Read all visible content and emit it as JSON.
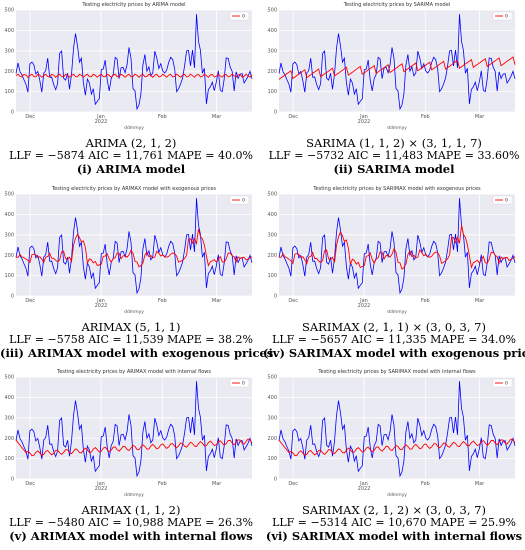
{
  "chart_data": [
    {
      "type": "line",
      "title": "Testing electricity prices by ARIMA model",
      "xlabel": "ddmmyy",
      "ylabel": "",
      "ylim": [
        0,
        500
      ],
      "yticks": [
        0,
        100,
        200,
        300,
        400,
        500
      ],
      "xticks": [
        "Dec",
        "Jan\n2022",
        "Feb",
        "Mar"
      ],
      "legend": {
        "position": "top-right",
        "entries": [
          "0"
        ]
      },
      "grid": true,
      "series": [
        {
          "name": "",
          "color": "#0000ff",
          "profile": "actual"
        },
        {
          "name": "0",
          "color": "#ff0000",
          "profile": "arima"
        }
      ],
      "caption": {
        "model": "ARIMA (2, 1, 2)",
        "stats": "LLF = −5874 AIC = 11,761 MAPE = 40.0%",
        "label": "(i) ARIMA model"
      }
    },
    {
      "type": "line",
      "title": "Testing electricity prices by SARIMA model",
      "xlabel": "ddmmyy",
      "ylabel": "",
      "ylim": [
        0,
        500
      ],
      "yticks": [
        0,
        100,
        200,
        300,
        400,
        500
      ],
      "xticks": [
        "Dec",
        "Jan\n2022",
        "Feb",
        "Mar"
      ],
      "legend": {
        "position": "top-right",
        "entries": [
          "0"
        ]
      },
      "grid": true,
      "series": [
        {
          "name": "",
          "color": "#0000ff",
          "profile": "actual"
        },
        {
          "name": "0",
          "color": "#ff0000",
          "profile": "sarima"
        }
      ],
      "caption": {
        "model": "SARIMA (1, 1, 2) × (3, 1, 1, 7)",
        "stats": "LLF = −5732 AIC = 11,483 MAPE = 33.60%",
        "label": "(ii) SARIMA model"
      }
    },
    {
      "type": "line",
      "title": "Testing electricity prices by ARIMAX model with exogenous prices",
      "xlabel": "ddmmyy",
      "ylabel": "",
      "ylim": [
        0,
        500
      ],
      "yticks": [
        0,
        100,
        200,
        300,
        400,
        500
      ],
      "xticks": [
        "Dec",
        "Jan\n2022",
        "Feb",
        "Mar"
      ],
      "legend": {
        "position": "top-right",
        "entries": [
          "0"
        ]
      },
      "grid": true,
      "series": [
        {
          "name": "",
          "color": "#0000ff",
          "profile": "actual"
        },
        {
          "name": "0",
          "color": "#ff0000",
          "profile": "exog"
        }
      ],
      "caption": {
        "model": "ARIMAX (5, 1, 1)",
        "stats": "LLF = −5758 AIC = 11,539 MAPE = 38.2%",
        "label": "(iii) ARIMAX model with exogenous prices"
      }
    },
    {
      "type": "line",
      "title": "Testing electricity prices by SARIMAX model with exogenous prices",
      "xlabel": "ddmmyy",
      "ylabel": "",
      "ylim": [
        0,
        500
      ],
      "yticks": [
        0,
        100,
        200,
        300,
        400,
        500
      ],
      "xticks": [
        "Dec",
        "Jan\n2022",
        "Feb",
        "Mar"
      ],
      "legend": {
        "position": "top-right",
        "entries": [
          "0"
        ]
      },
      "grid": true,
      "series": [
        {
          "name": "",
          "color": "#0000ff",
          "profile": "actual"
        },
        {
          "name": "0",
          "color": "#ff0000",
          "profile": "exog2"
        }
      ],
      "caption": {
        "model": "SARIMAX (2, 1, 1) × (3, 0, 3, 7)",
        "stats": "LLF = −5657 AIC = 11,335 MAPE = 34.0%",
        "label": "(iv) SARIMAX model with exogenous prices"
      }
    },
    {
      "type": "line",
      "title": "Testing electricity prices by ARIMAX model with internal flows",
      "xlabel": "ddmmyy",
      "ylabel": "",
      "ylim": [
        0,
        500
      ],
      "yticks": [
        0,
        100,
        200,
        300,
        400,
        500
      ],
      "xticks": [
        "Dec",
        "Jan\n2022",
        "Feb",
        "Mar"
      ],
      "legend": {
        "position": "top-right",
        "entries": [
          "0"
        ]
      },
      "grid": true,
      "series": [
        {
          "name": "",
          "color": "#0000ff",
          "profile": "actual"
        },
        {
          "name": "0",
          "color": "#ff0000",
          "profile": "flows"
        }
      ],
      "caption": {
        "model": "ARIMAX (1, 1, 2)",
        "stats": "LLF = −5480 AIC = 10,988 MAPE = 26.3%",
        "label": "(v) ARIMAX model with internal flows"
      }
    },
    {
      "type": "line",
      "title": "Testing electricity prices by SARIMAX model with internal flows",
      "xlabel": "ddmmyy",
      "ylabel": "",
      "ylim": [
        0,
        500
      ],
      "yticks": [
        0,
        100,
        200,
        300,
        400,
        500
      ],
      "xticks": [
        "Dec",
        "Jan\n2022",
        "Feb",
        "Mar"
      ],
      "legend": {
        "position": "top-right",
        "entries": [
          "0"
        ]
      },
      "grid": true,
      "series": [
        {
          "name": "",
          "color": "#0000ff",
          "profile": "actual"
        },
        {
          "name": "0",
          "color": "#ff0000",
          "profile": "flows"
        }
      ],
      "caption": {
        "model": "SARIMAX (2, 1, 2) × (3, 0, 3, 7)",
        "stats": "LLF = −5314 AIC = 10,670 MAPE = 25.9%",
        "label": "(vi) SARIMAX model with internal flows"
      }
    }
  ]
}
